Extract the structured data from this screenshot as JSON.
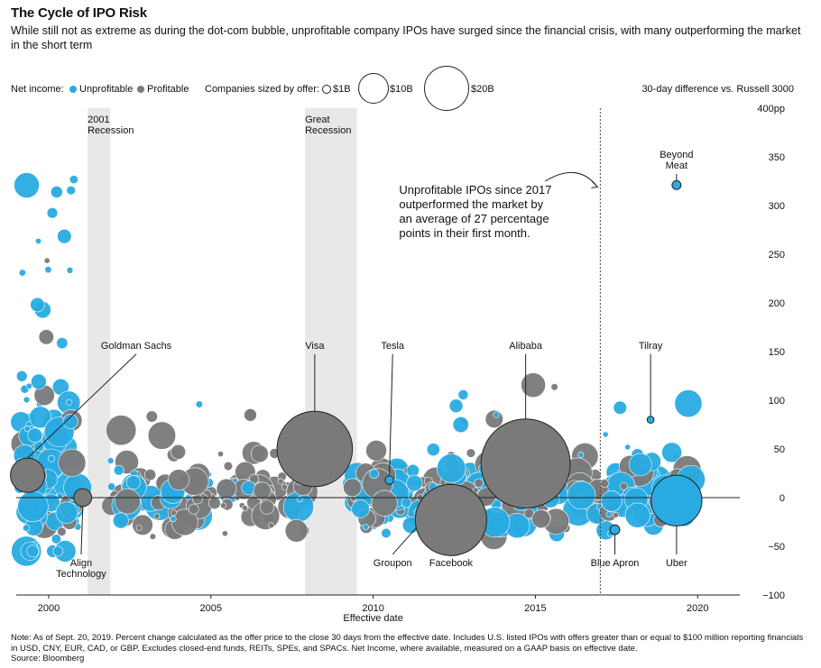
{
  "header": {
    "title": "The Cycle of IPO Risk",
    "subtitle": "While still not as extreme as during the dot-com bubble, unprofitable company IPOs have surged since the financial crisis, with many outperforming the market in the short term"
  },
  "legend": {
    "net_income_label": "Net income:",
    "unprofitable_label": "Unprofitable",
    "profitable_label": "Profitable",
    "sized_label": "Companies sized by offer:",
    "size_1b": "$1B",
    "size_10b": "$10B",
    "size_20b": "$20B",
    "right_label": "30-day difference vs. Russell 3000"
  },
  "colors": {
    "unprofitable": "#29abe2",
    "profitable": "#7a7a7a",
    "recession_band": "#e8e8e8",
    "text": "#111111"
  },
  "footer": {
    "note": "Note: As of Sept. 20, 2019. Percent change calculated as the offer price to the close 30 days from the effective date. Includes U.S. listed IPOs with offers greater than or equal to $100 million reporting financials in USD, CNY, EUR, CAD, or GBP. Excludes closed-end funds, REITs, SPEs, and SPACs. Net Income, where available, measured on a GAAP basis on effective date.",
    "source": "Source: Bloomberg"
  },
  "chart_data": {
    "type": "scatter",
    "title": "The Cycle of IPO Risk",
    "xlabel": "Effective date",
    "ylabel": "30-day difference vs. Russell 3000",
    "xlim": [
      1999.0,
      2021.3
    ],
    "ylim": [
      -100,
      400
    ],
    "x_ticks": [
      2000,
      2005,
      2010,
      2015,
      2020
    ],
    "y_ticks": [
      {
        "value": 400,
        "label": "400pp"
      },
      {
        "value": 350,
        "label": "350"
      },
      {
        "value": 300,
        "label": "300"
      },
      {
        "value": 250,
        "label": "250"
      },
      {
        "value": 200,
        "label": "200"
      },
      {
        "value": 150,
        "label": "150"
      },
      {
        "value": 100,
        "label": "100"
      },
      {
        "value": 50,
        "label": "50"
      },
      {
        "value": 0,
        "label": "0"
      },
      {
        "value": -50,
        "label": "−50"
      },
      {
        "value": -100,
        "label": "−100"
      }
    ],
    "grid": false,
    "size_legend_billions": [
      1,
      10,
      20
    ],
    "recessions": [
      {
        "label_line1": "2001",
        "label_line2": "Recession",
        "start": 2001.2,
        "end": 2001.9
      },
      {
        "label_line1": "Great",
        "label_line2": "Recession",
        "start": 2007.9,
        "end": 2009.5
      }
    ],
    "reference_line": {
      "x": 2017.0
    },
    "annotation": {
      "text": "Unprofitable IPOs since 2017 outperformed the market by an average of 27 percentage points in their first month.",
      "lines": [
        "Unprofitable IPOs since 2017",
        "outperformed the market by",
        "an average of 27 percentage",
        "points in their first month."
      ]
    },
    "labeled_points": [
      {
        "name": "Goldman Sachs",
        "x": 1999.35,
        "y": 23,
        "size": 3.7,
        "status": "profitable",
        "label_pos": "above",
        "label_x": 2002.7,
        "label_y": 153
      },
      {
        "name": "Align Technology",
        "x": 2001.05,
        "y": 0,
        "size": 1.0,
        "status": "profitable",
        "label_pos": "below",
        "label_x": 2001.0,
        "label_y": -62
      },
      {
        "name": "Visa",
        "x": 2008.2,
        "y": 50,
        "size": 17.9,
        "status": "profitable",
        "label_pos": "above",
        "label_x": 2008.2,
        "label_y": 153
      },
      {
        "name": "Tesla",
        "x": 2010.5,
        "y": 18,
        "size": 0.23,
        "status": "unprofitable",
        "label_pos": "above",
        "label_x": 2010.6,
        "label_y": 153
      },
      {
        "name": "Groupon",
        "x": 2011.9,
        "y": -2,
        "size": 0.7,
        "status": "unprofitable",
        "label_pos": "below",
        "label_x": 2010.6,
        "label_y": -62
      },
      {
        "name": "Facebook",
        "x": 2012.4,
        "y": -23,
        "size": 16.0,
        "status": "profitable",
        "label_pos": "below",
        "label_x": 2012.4,
        "label_y": -62
      },
      {
        "name": "Alibaba",
        "x": 2014.7,
        "y": 35,
        "size": 25.0,
        "status": "profitable",
        "label_pos": "above",
        "label_x": 2014.7,
        "label_y": 153
      },
      {
        "name": "Blue Apron",
        "x": 2017.45,
        "y": -33,
        "size": 0.3,
        "status": "unprofitable",
        "label_pos": "below",
        "label_x": 2017.45,
        "label_y": -62
      },
      {
        "name": "Tilray",
        "x": 2018.55,
        "y": 80,
        "size": 0.15,
        "status": "unprofitable",
        "label_pos": "above",
        "label_x": 2018.55,
        "label_y": 153
      },
      {
        "name": "Beyond Meat",
        "x": 2019.35,
        "y": 321,
        "size": 0.25,
        "status": "unprofitable",
        "label_pos": "above",
        "label_x": 2019.35,
        "label_y": 338
      },
      {
        "name": "Uber",
        "x": 2019.35,
        "y": -3,
        "size": 8.1,
        "status": "unprofitable",
        "label_pos": "below",
        "label_x": 2019.35,
        "label_y": -62
      }
    ]
  }
}
